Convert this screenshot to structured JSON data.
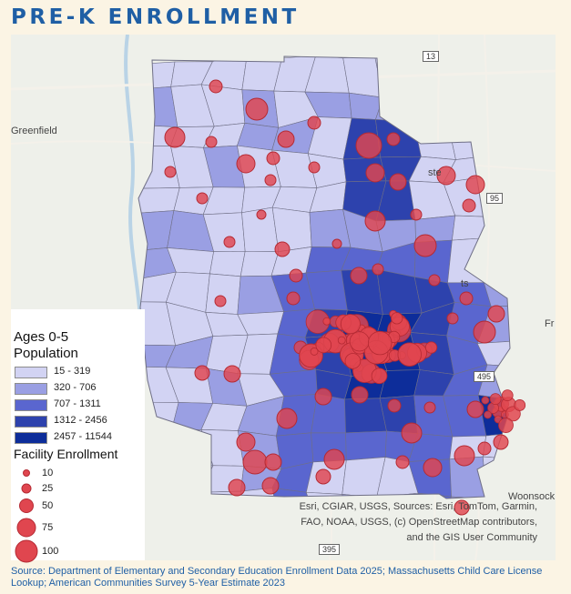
{
  "title": "PRE-K ENROLLMENT",
  "map": {
    "place_labels": [
      "Greenfield",
      "Woonsock",
      "Fr",
      "ste",
      "ts"
    ],
    "road_shields": [
      "13",
      "495",
      "95",
      "395"
    ],
    "attribution": [
      "Esri, CGIAR, USGS, Sources: Esri, TomTom, Garmin,",
      "FAO, NOAA, USGS, (c) OpenStreetMap contributors,",
      "and the GIS User Community"
    ]
  },
  "legend": {
    "population_title_1": "Ages 0-5",
    "population_title_2": "Population",
    "classes": [
      {
        "label": "15 - 319",
        "color": "#d2d3f3"
      },
      {
        "label": "320 - 706",
        "color": "#9a9fe3"
      },
      {
        "label": "707 - 1311",
        "color": "#5a66cf"
      },
      {
        "label": "1312 - 2456",
        "color": "#2d42ad"
      },
      {
        "label": "2457 - 11544",
        "color": "#0d2d9a"
      }
    ],
    "enrollment_title": "Facility Enrollment",
    "sizes": [
      "10",
      "25",
      "50",
      "75",
      "100"
    ]
  },
  "colors": {
    "title": "#1f5fa5",
    "bubble_fill": "#e0464f",
    "bubble_stroke": "#b52a33"
  },
  "source": "Source: Department of Elementary and Secondary Education Enrollment Data 2025; Massachusetts Child Care License Lookup; American Communities Survey 5-Year Estimate 2023"
}
